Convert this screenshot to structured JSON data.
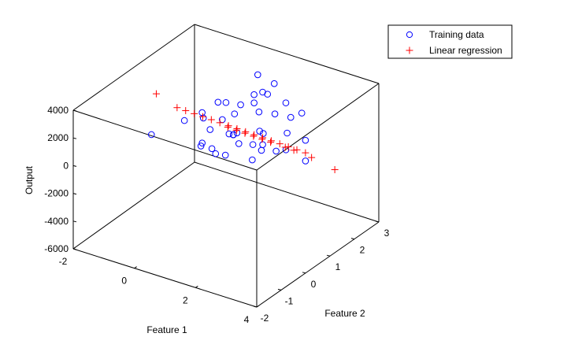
{
  "chart_data": {
    "type": "scatter",
    "projection": "3d",
    "xlabel": "Feature 1",
    "ylabel": "Feature 2",
    "zlabel": "Output",
    "xlim": [
      -2,
      4
    ],
    "ylim": [
      -2,
      3
    ],
    "zlim": [
      -6000,
      4000
    ],
    "x_ticks": [
      "-2",
      "0",
      "2",
      "4"
    ],
    "y_ticks": [
      "-2",
      "-1",
      "0",
      "1",
      "2",
      "3"
    ],
    "z_ticks": [
      "-6000",
      "-4000",
      "-2000",
      "0",
      "2000",
      "4000"
    ],
    "legend": {
      "placement": "top-right",
      "entries": [
        {
          "label": "Training data",
          "marker": "circle",
          "color": "#0000ff"
        },
        {
          "label": "Linear regression",
          "marker": "plus",
          "color": "#ff0000"
        }
      ]
    },
    "series": [
      {
        "name": "Training data",
        "marker": "circle",
        "color": "#0000ff",
        "points": [
          [
            -0.6,
            0.8,
            800
          ],
          [
            -0.3,
            1.2,
            700
          ],
          [
            -0.1,
            0.9,
            1600
          ],
          [
            0.1,
            1.3,
            2000
          ],
          [
            0.4,
            1.1,
            1200
          ],
          [
            0.6,
            1.6,
            1800
          ],
          [
            0.8,
            1.9,
            2300
          ],
          [
            1.0,
            2.0,
            2500
          ],
          [
            1.2,
            1.4,
            2600
          ],
          [
            1.4,
            1.7,
            3000
          ],
          [
            1.6,
            2.2,
            1900
          ],
          [
            1.8,
            1.5,
            2100
          ],
          [
            2.0,
            1.9,
            1500
          ],
          [
            0.3,
            0.4,
            300
          ],
          [
            0.5,
            0.7,
            -700
          ],
          [
            0.7,
            1.0,
            500
          ],
          [
            0.9,
            0.6,
            -400
          ],
          [
            1.1,
            0.9,
            200
          ],
          [
            1.3,
            1.2,
            -1200
          ],
          [
            1.5,
            1.4,
            600
          ],
          [
            1.7,
            1.0,
            1400
          ],
          [
            0.0,
            1.1,
            200
          ],
          [
            0.2,
            1.5,
            1800
          ],
          [
            0.4,
            1.6,
            1000
          ],
          [
            0.6,
            1.3,
            0
          ],
          [
            0.8,
            1.2,
            400
          ],
          [
            1.0,
            0.8,
            900
          ],
          [
            1.2,
            1.6,
            1700
          ],
          [
            1.4,
            1.1,
            100
          ],
          [
            1.6,
            1.2,
            -300
          ],
          [
            1.8,
            1.0,
            500
          ],
          [
            2.0,
            1.3,
            -200
          ],
          [
            2.2,
            1.5,
            1000
          ],
          [
            2.4,
            1.2,
            300
          ],
          [
            2.6,
            1.6,
            2600
          ],
          [
            2.8,
            1.5,
            900
          ],
          [
            3.2,
            1.0,
            300
          ],
          [
            0.1,
            0.6,
            -300
          ],
          [
            0.3,
            0.8,
            -600
          ],
          [
            -1.2,
            0.2,
            100
          ],
          [
            1.0,
            1.8,
            4000
          ],
          [
            1.3,
            2.1,
            3200
          ]
        ]
      },
      {
        "name": "Linear regression",
        "marker": "plus",
        "color": "#ff0000",
        "points": [
          [
            -1.2,
            0.4,
            2800
          ],
          [
            -0.6,
            0.5,
            2100
          ],
          [
            -0.4,
            0.6,
            1900
          ],
          [
            -0.2,
            0.7,
            1700
          ],
          [
            0.0,
            0.8,
            1500
          ],
          [
            0.2,
            0.9,
            1300
          ],
          [
            0.4,
            1.0,
            1100
          ],
          [
            0.6,
            1.1,
            900
          ],
          [
            0.8,
            1.2,
            700
          ],
          [
            1.0,
            1.3,
            500
          ],
          [
            1.2,
            1.4,
            300
          ],
          [
            1.4,
            1.5,
            100
          ],
          [
            1.6,
            1.6,
            -100
          ],
          [
            1.8,
            1.7,
            -300
          ],
          [
            2.0,
            1.8,
            -500
          ],
          [
            2.2,
            1.9,
            -700
          ],
          [
            2.4,
            2.0,
            -900
          ],
          [
            2.6,
            2.0,
            -1100
          ],
          [
            3.2,
            2.2,
            -1800
          ],
          [
            0.5,
            1.2,
            600
          ],
          [
            0.7,
            1.3,
            400
          ],
          [
            0.9,
            1.4,
            200
          ],
          [
            1.1,
            1.5,
            0
          ],
          [
            1.3,
            1.6,
            -200
          ],
          [
            1.5,
            1.7,
            -400
          ],
          [
            1.9,
            1.8,
            -600
          ],
          [
            2.1,
            1.9,
            -800
          ]
        ]
      }
    ]
  }
}
